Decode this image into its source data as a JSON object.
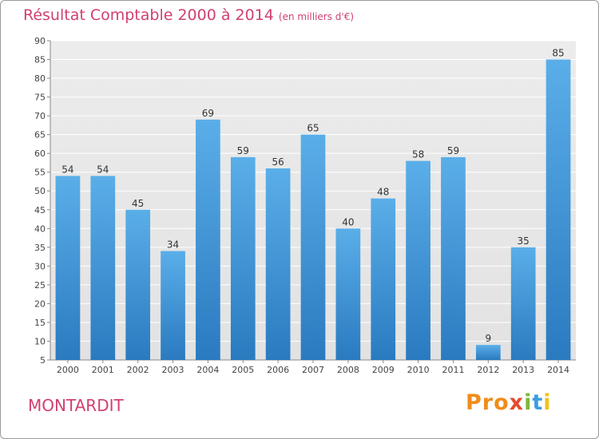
{
  "header": {
    "title": "Résultat Comptable 2000 à 2014",
    "subtitle": "(en milliers d'€)"
  },
  "footer": {
    "commune": "MONTARDIT",
    "logo": [
      "Pro",
      "x",
      "i",
      "t",
      "i"
    ]
  },
  "colors": {
    "title": "#d04070",
    "bar_top": "#5aaee8",
    "bar_bottom": "#2a7ac0",
    "plot_bg": "#e8e8e8"
  },
  "chart_data": {
    "type": "bar",
    "title": "Résultat Comptable 2000 à 2014",
    "xlabel": "",
    "ylabel": "",
    "ylim": [
      5,
      90
    ],
    "yticks": [
      5,
      10,
      15,
      20,
      25,
      30,
      35,
      40,
      45,
      50,
      55,
      60,
      65,
      70,
      75,
      80,
      85,
      90
    ],
    "grid": true,
    "categories": [
      "2000",
      "2001",
      "2002",
      "2003",
      "2004",
      "2005",
      "2006",
      "2007",
      "2008",
      "2009",
      "2010",
      "2011",
      "2012",
      "2013",
      "2014"
    ],
    "values": [
      54,
      54,
      45,
      34,
      69,
      59,
      56,
      65,
      40,
      48,
      58,
      59,
      9,
      35,
      85
    ]
  }
}
